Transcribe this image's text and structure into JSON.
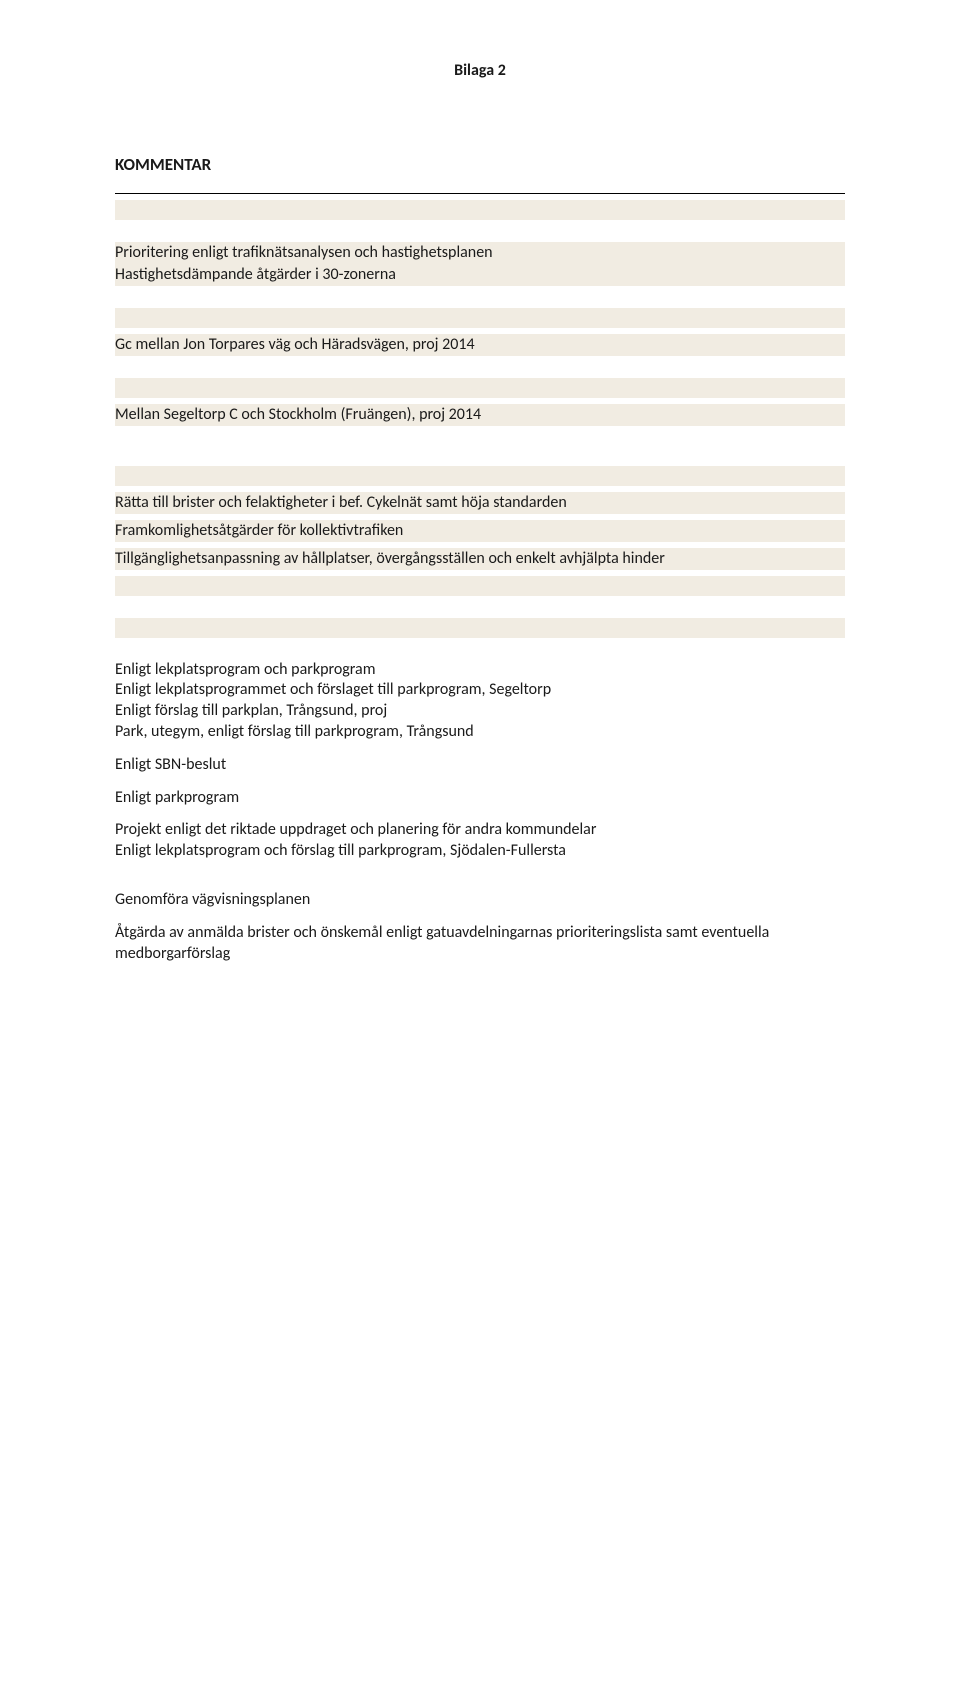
{
  "colors": {
    "highlight_bg": "#f1ece2",
    "page_bg": "#ffffff",
    "text": "#1a1a1a",
    "rule": "#000000"
  },
  "typography": {
    "family": "Calibri, Segoe UI, Arial, sans-serif",
    "body_size_pt": 12,
    "header_size_pt": 12,
    "title_weight": "700"
  },
  "header": {
    "appendix_label": "Bilaga 2"
  },
  "section": {
    "comment_heading": "KOMMENTAR"
  },
  "lines": {
    "prio": "Prioritering enligt trafiknätsanalysen och hastighetsplanen",
    "speed_measures": "Hastighetsdämpande åtgärder i 30-zonerna",
    "empty_hl_1": "",
    "gc_jon": "Gc mellan Jon Torpares väg och Häradsvägen, proj 2014",
    "empty_hl_2": "",
    "segeltorp": "Mellan Segeltorp C och Stockholm (Fruängen), proj 2014",
    "empty_hl_3": "",
    "ratta_brister": "Rätta till brister och felaktigheter i bef. Cykelnät samt höja standarden",
    "framkom": "Framkomlighetsåtgärder för kollektivtrafiken",
    "tillganglighet": "Tillgänglighetsanpassning av hållplatser, övergångsställen och enkelt avhjälpta hinder",
    "empty_hl_4": "",
    "empty_hl_5": "",
    "lekplats1": "Enligt lekplatsprogram och parkprogram",
    "lekplats2": "Enligt lekplatsprogrammet och förslaget till parkprogram, Segeltorp",
    "trangsund_plan": "Enligt förslag till parkplan, Trångsund, proj",
    "utegym": "Park, utegym, enligt förslag till parkprogram, Trångsund",
    "sbn_beslut": "Enligt SBN-beslut",
    "parkprogram": "Enligt parkprogram",
    "projekt_riktad": "Projekt enligt det riktade uppdraget och planering för andra kommundelar",
    "lekplats_sjodalen": "Enligt lekplatsprogram och förslag till parkprogram, Sjödalen-Fullersta",
    "vagvisning": "Genomföra vägvisningsplanen",
    "brister_oskmal": "Åtgärda av anmälda brister och önskemål enligt gatuavdelningarnas prioriteringslista samt eventuella medborgarförslag"
  }
}
